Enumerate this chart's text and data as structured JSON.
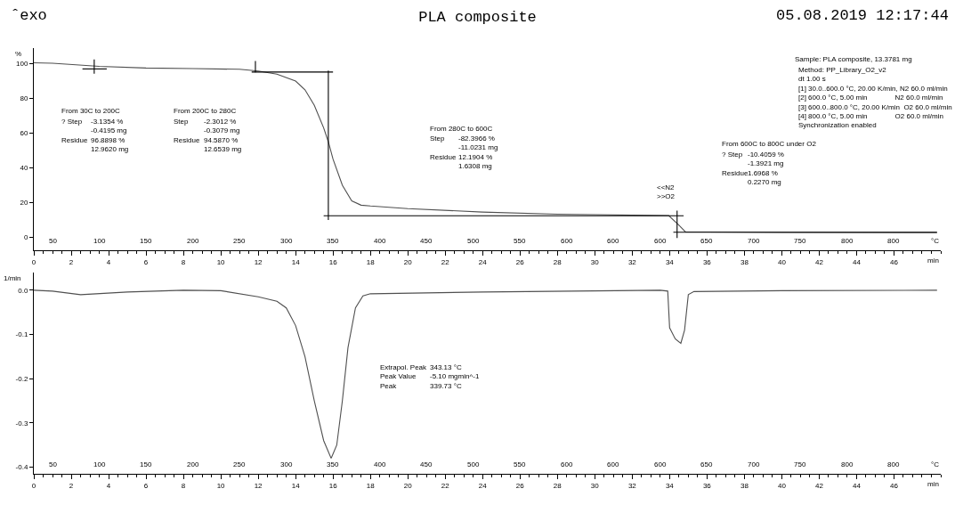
{
  "chart_data": [
    {
      "type": "line",
      "title": "PLA composite",
      "ylabel": "%",
      "xlabel": "min",
      "xlim": [
        0,
        48.5
      ],
      "xticks": [
        0,
        2,
        4,
        6,
        8,
        10,
        12,
        14,
        16,
        18,
        20,
        22,
        24,
        26,
        28,
        30,
        32,
        34,
        36,
        38,
        40,
        42,
        44,
        46
      ],
      "ylim": [
        -7.5,
        109
      ],
      "yticks": [
        0,
        20,
        40,
        60,
        80,
        100
      ],
      "series": [
        {
          "color": "#505050",
          "x": [
            0,
            1,
            3.5,
            6,
            8.5,
            11,
            12,
            13,
            14,
            14.5,
            15,
            15.5,
            15.75,
            16,
            16.5,
            17,
            17.5,
            18,
            20,
            24,
            28,
            30,
            33,
            33.95,
            34.4,
            34.85,
            36,
            40,
            48.3
          ],
          "values": [
            100.5,
            100.3,
            98.5,
            97.5,
            97.2,
            96.8,
            95.8,
            94,
            90,
            85,
            76,
            63,
            55,
            45,
            30,
            21,
            18.5,
            18,
            16.5,
            14.5,
            13.3,
            13,
            12.6,
            12.5,
            8,
            3.1,
            3,
            2.8,
            2.6
          ]
        },
        {
          "color": "#000000",
          "x": [
            3.23,
            3.23,
            null,
            2.6,
            3.9,
            null,
            11.85,
            11.85,
            null,
            11.65,
            16.0,
            null,
            15.75,
            15.75,
            null,
            15.5,
            34.75,
            null,
            34.4,
            34.4,
            null,
            34.2,
            48.3
          ],
          "values": [
            102.5,
            94.3,
            null,
            97,
            97,
            null,
            101.5,
            95,
            null,
            95.2,
            95.2,
            null,
            96,
            10,
            null,
            12.4,
            12.4,
            null,
            15.4,
            -0.5,
            null,
            2.9,
            2.9
          ]
        }
      ],
      "annotations": [
        "ˆexo",
        "05.08.2019 12:17:44",
        "From 30C to 200C",
        "? Step\n\nResidue",
        "-3.1354 %\n-0.4195 mg\n96.8898 %\n12.9620 mg",
        "From 200C to 280C",
        "Step\n\nResidue",
        "-2.3012 %\n-0.3079 mg\n94.5870 %\n12.6539 mg",
        "From 280C to 600C",
        "Step\n\nResidue",
        "-82.3966 %\n-11.0231 mg\n12.1904 %\n1.6308 mg",
        "From 600C to 800C under O2",
        "? Step\n\nResidue",
        "-10.4059 %\n-1.3921 mg\n1.6968 %\n0.2270 mg",
        "<<N2\n>>O2",
        "Sample: PLA composite, 13.3781 mg",
        "Method: PP_Library_O2_v2\ndt 1.00 s\n[1] 30.0..600.0 °C, 20.00 K/min, N2 60.0 ml/min\n[2] 600.0 °C, 5.00 min              N2 60.0 ml/min\n[3] 600.0..800.0 °C, 20.00 K/min  O2 60.0 ml/min\n[4] 800.0 °C, 5.00 min              O2 60.0 ml/min\nSynchronization enabled",
        "50",
        "100",
        "150",
        "200",
        "250",
        "300",
        "350",
        "400",
        "450",
        "500",
        "550",
        "600",
        "600",
        "600",
        "650",
        "700",
        "750",
        "800",
        "800",
        "°C"
      ]
    },
    {
      "type": "line",
      "ylabel": "1/min",
      "xlabel": "min",
      "xlim": [
        0,
        48.5
      ],
      "xticks": [
        0,
        2,
        4,
        6,
        8,
        10,
        12,
        14,
        16,
        18,
        20,
        22,
        24,
        26,
        28,
        30,
        32,
        34,
        36,
        38,
        40,
        42,
        44,
        46
      ],
      "ylim": [
        -0.415,
        0.04
      ],
      "yticks": [
        {
          "value": 0,
          "label": "0.0"
        },
        -0.1,
        -0.2,
        -0.3,
        -0.4
      ],
      "series": [
        {
          "color": "#505050",
          "x": [
            0,
            1,
            2.5,
            5,
            8,
            10,
            12,
            13,
            13.5,
            14,
            14.5,
            15,
            15.5,
            15.9,
            16.2,
            16.5,
            16.8,
            17.2,
            17.6,
            18,
            24,
            33.5,
            33.9,
            34.0,
            34.3,
            34.6,
            34.8,
            35.0,
            35.3,
            40,
            48.3
          ],
          "values": [
            0,
            -0.002,
            -0.01,
            -0.004,
            0,
            -0.001,
            -0.015,
            -0.025,
            -0.04,
            -0.08,
            -0.15,
            -0.25,
            -0.34,
            -0.38,
            -0.35,
            -0.25,
            -0.13,
            -0.04,
            -0.013,
            -0.008,
            -0.004,
            0,
            -0.002,
            -0.085,
            -0.11,
            -0.12,
            -0.09,
            -0.01,
            -0.003,
            -0.001,
            0
          ]
        }
      ],
      "annotations": [
        "Extrapol. Peak\nPeak Value\nPeak",
        "343.13 °C\n-5.10 mgmin^-1\n339.73 °C",
        "50",
        "100",
        "150",
        "200",
        "250",
        "300",
        "350",
        "400",
        "450",
        "500",
        "550",
        "600",
        "600",
        "600",
        "650",
        "700",
        "750",
        "800",
        "800",
        "°C"
      ]
    }
  ]
}
